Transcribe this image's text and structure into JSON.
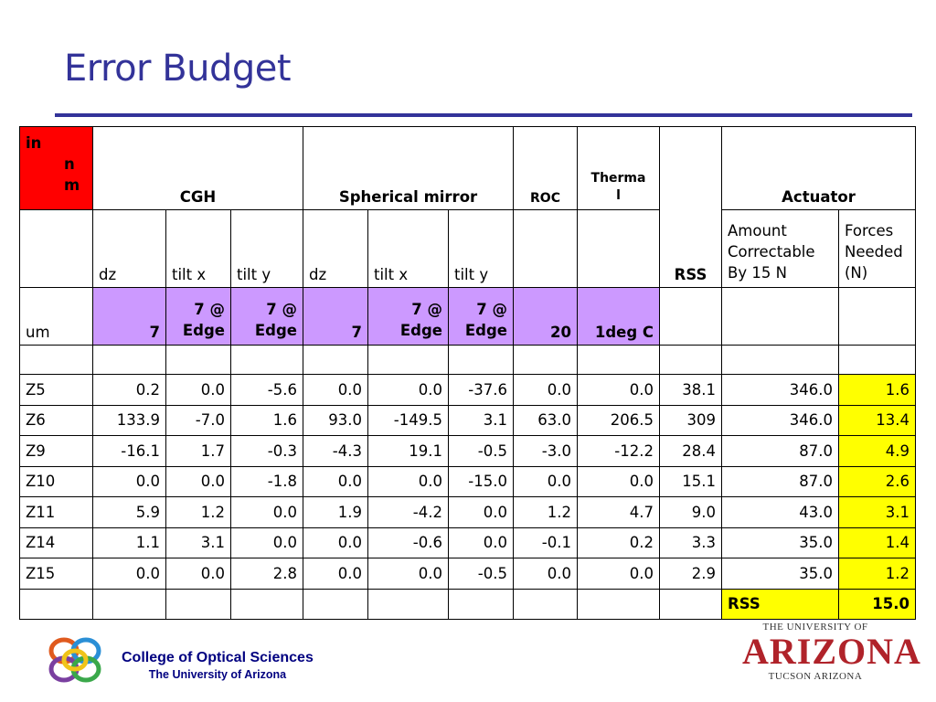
{
  "slide": {
    "title": "Error Budget"
  },
  "table": {
    "corner": [
      "in",
      "n",
      "m"
    ],
    "groups": {
      "cgh": "CGH",
      "spherical": "Spherical mirror",
      "roc": "ROC",
      "thermal": [
        "Therma",
        "l"
      ],
      "rss": "RSS",
      "actuator": "Actuator"
    },
    "sub": {
      "cgh_dz": "dz",
      "cgh_tiltx": "tilt x",
      "cgh_tilty": "tilt y",
      "sph_dz": "dz",
      "sph_tiltx": "tilt x",
      "sph_tilty": "tilt y",
      "amount": [
        "Amount",
        "Correctable",
        "By 15 N"
      ],
      "forces": [
        "Forces",
        "Needed",
        "(N)"
      ]
    },
    "tolerance": {
      "unit": "um",
      "cgh_dz": "7",
      "cgh_tiltx": [
        "7 @",
        "Edge"
      ],
      "cgh_tilty": [
        "7 @",
        "Edge"
      ],
      "sph_dz": "7",
      "sph_tiltx": [
        "7 @",
        "Edge"
      ],
      "sph_tilty": [
        "7 @",
        "Edge"
      ],
      "roc": "20",
      "thermal": "1deg C"
    },
    "rows": [
      [
        "Z5",
        "0.2",
        "0.0",
        "-5.6",
        "0.0",
        "0.0",
        "-37.6",
        "0.0",
        "0.0",
        "38.1",
        "346.0",
        "1.6"
      ],
      [
        "Z6",
        "133.9",
        "-7.0",
        "1.6",
        "93.0",
        "-149.5",
        "3.1",
        "63.0",
        "206.5",
        "309",
        "346.0",
        "13.4"
      ],
      [
        "Z9",
        "-16.1",
        "1.7",
        "-0.3",
        "-4.3",
        "19.1",
        "-0.5",
        "-3.0",
        "-12.2",
        "28.4",
        "87.0",
        "4.9"
      ],
      [
        "Z10",
        "0.0",
        "0.0",
        "-1.8",
        "0.0",
        "0.0",
        "-15.0",
        "0.0",
        "0.0",
        "15.1",
        "87.0",
        "2.6"
      ],
      [
        "Z11",
        "5.9",
        "1.2",
        "0.0",
        "1.9",
        "-4.2",
        "0.0",
        "1.2",
        "4.7",
        "9.0",
        "43.0",
        "3.1"
      ],
      [
        "Z14",
        "1.1",
        "3.1",
        "0.0",
        "0.0",
        "-0.6",
        "0.0",
        "-0.1",
        "0.2",
        "3.3",
        "35.0",
        "1.4"
      ],
      [
        "Z15",
        "0.0",
        "0.0",
        "2.8",
        "0.0",
        "0.0",
        "-0.5",
        "0.0",
        "0.0",
        "2.9",
        "35.0",
        "1.2"
      ]
    ],
    "total": {
      "label": "RSS",
      "value": "15.0"
    }
  },
  "footer": {
    "college": "College of Optical Sciences",
    "university": "The University of Arizona",
    "ua_logo": {
      "top": "THE UNIVERSITY OF",
      "main": "ARIZONA",
      "bottom": "TUCSON ARIZONA"
    }
  },
  "colors": {
    "title": "#333399",
    "header_red": "#ff0000",
    "tolerance_lavender": "#cc99ff",
    "forces_yellow": "#ffff00",
    "ua_red": "#b0232a"
  }
}
